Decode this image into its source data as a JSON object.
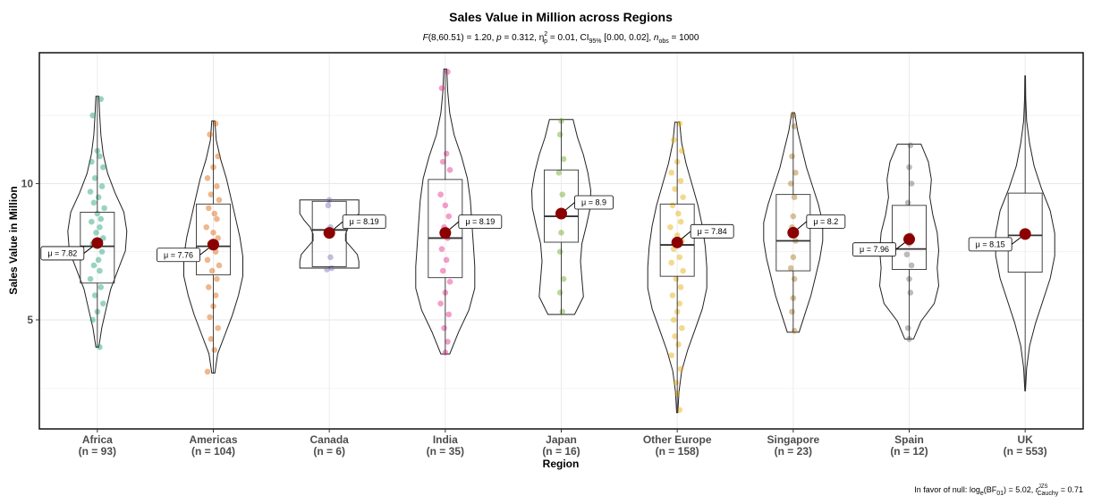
{
  "chart_data": {
    "type": "violin",
    "title": "Sales Value in Million across Regions",
    "subtitle_parts": {
      "F_label": "F",
      "F_args": "(8,60.51) = 1.20, ",
      "p_label": "p",
      "p_value": " = 0.312, ",
      "eta_label": "η",
      "eta_sup": "2",
      "eta_sub": "p",
      "eta_value": " = 0.01, CI",
      "ci_sub": "95%",
      "ci_value": " [0.00, 0.02], ",
      "n_label": "n",
      "n_sub": "obs",
      "n_value": " = 1000"
    },
    "xlabel": "Region",
    "ylabel": "Sales Value in Million",
    "ylim": [
      1.0,
      14.8
    ],
    "yticks": [
      5,
      10
    ],
    "grid": true,
    "caption_parts": {
      "prefix": "In favor of null: log",
      "log_sub": "e",
      "bf": "(BF",
      "bf_sub": "01",
      "mid": ") = 5.02, ",
      "r_label": "r",
      "r_sup": "JZS",
      "r_sub": "Cauchy",
      "suffix": " = 0.71"
    },
    "categories": [
      "Africa",
      "Americas",
      "Canada",
      "India",
      "Japan",
      "Other Europe",
      "Singapore",
      "Spain",
      "UK"
    ],
    "counts": [
      "(n = 93)",
      "(n = 104)",
      "(n = 6)",
      "(n = 35)",
      "(n = 16)",
      "(n = 158)",
      "(n = 23)",
      "(n = 12)",
      "(n = 553)"
    ],
    "colors": [
      "#1B9E77",
      "#D95F02",
      "#7570B3",
      "#E7298A",
      "#66A61E",
      "#E6AB02",
      "#A6761D",
      "#666666",
      "#1B9E77"
    ],
    "means": [
      7.82,
      7.76,
      8.19,
      8.19,
      8.9,
      7.84,
      8.2,
      7.96,
      8.15
    ],
    "mean_labels": [
      "μ = 7.82",
      "μ = 7.76",
      "μ = 8.19",
      "μ = 8.19",
      "μ = 8.9",
      "μ = 7.84",
      "μ = 8.2",
      "μ = 7.96",
      "μ = 8.15"
    ],
    "label_side": [
      "left",
      "left",
      "right",
      "right",
      "right",
      "right",
      "right",
      "left",
      "left"
    ],
    "boxes": [
      {
        "q1": 6.35,
        "median": 7.7,
        "q3": 8.95,
        "wlow": 4.0,
        "whigh": 13.2
      },
      {
        "q1": 6.65,
        "median": 7.7,
        "q3": 9.25,
        "wlow": 3.05,
        "whigh": 12.3
      },
      {
        "q1": 6.95,
        "median": 8.3,
        "q3": 9.35,
        "wlow": 6.9,
        "whigh": 9.4
      },
      {
        "q1": 6.55,
        "median": 8.0,
        "q3": 10.15,
        "wlow": 3.75,
        "whigh": 14.2
      },
      {
        "q1": 7.85,
        "median": 8.8,
        "q3": 10.5,
        "wlow": 5.2,
        "whigh": 12.35
      },
      {
        "q1": 6.6,
        "median": 7.75,
        "q3": 9.25,
        "wlow": 1.6,
        "whigh": 12.25
      },
      {
        "q1": 6.8,
        "median": 7.9,
        "q3": 9.6,
        "wlow": 4.55,
        "whigh": 12.6
      },
      {
        "q1": 6.85,
        "median": 7.6,
        "q3": 9.2,
        "wlow": 4.3,
        "whigh": 11.45
      },
      {
        "q1": 6.75,
        "median": 8.1,
        "q3": 9.65,
        "wlow": 2.4,
        "whigh": 13.95
      }
    ],
    "violins": [
      {
        "min": 4.0,
        "max": 13.2,
        "w": [
          0.05,
          0.15,
          0.3,
          0.45,
          0.7,
          0.95,
          1.0,
          0.9,
          0.6,
          0.35,
          0.2,
          0.12,
          0.08,
          0.05
        ]
      },
      {
        "min": 3.05,
        "max": 12.3,
        "w": [
          0.05,
          0.15,
          0.4,
          0.65,
          0.85,
          1.0,
          1.0,
          0.9,
          0.75,
          0.6,
          0.45,
          0.25,
          0.1,
          0.05
        ]
      },
      {
        "min": 6.9,
        "max": 9.4,
        "w": [
          1.0,
          1.0,
          0.95,
          0.75,
          0.55,
          0.55,
          0.65,
          0.85,
          1.0,
          1.0,
          1.0
        ]
      },
      {
        "min": 3.75,
        "max": 14.2,
        "w": [
          0.15,
          0.45,
          0.8,
          1.0,
          1.0,
          0.95,
          0.9,
          0.85,
          0.75,
          0.55,
          0.3,
          0.15,
          0.08,
          0.05
        ]
      },
      {
        "min": 5.2,
        "max": 12.35,
        "w": [
          0.45,
          0.75,
          0.7,
          0.65,
          0.7,
          0.85,
          0.98,
          1.0,
          0.9,
          0.75,
          0.55,
          0.4
        ]
      },
      {
        "min": 1.6,
        "max": 12.25,
        "w": [
          0.02,
          0.06,
          0.15,
          0.35,
          0.6,
          0.85,
          1.0,
          1.0,
          0.95,
          0.85,
          0.7,
          0.5,
          0.3,
          0.15,
          0.08
        ]
      },
      {
        "min": 4.55,
        "max": 12.6,
        "w": [
          0.2,
          0.4,
          0.6,
          0.75,
          0.9,
          1.0,
          1.0,
          0.85,
          0.65,
          0.45,
          0.3,
          0.15,
          0.05
        ]
      },
      {
        "min": 4.3,
        "max": 11.45,
        "w": [
          0.15,
          0.4,
          0.85,
          1.0,
          0.95,
          1.0,
          0.95,
          0.8,
          0.7,
          0.75,
          0.65,
          0.4
        ]
      },
      {
        "min": 2.4,
        "max": 13.95,
        "w": [
          0.01,
          0.05,
          0.15,
          0.35,
          0.6,
          0.85,
          1.0,
          1.0,
          0.85,
          0.55,
          0.3,
          0.15,
          0.05,
          0.02,
          0.01
        ]
      }
    ],
    "points": [
      {
        "x": [
          0.03,
          -0.04,
          0.0,
          0.02,
          -0.05,
          0.05,
          -0.02,
          0.04,
          -0.06,
          0.01,
          -0.03,
          0.06,
          0.0,
          0.03,
          -0.05,
          0.02,
          -0.01,
          0.05,
          -0.04,
          0.04,
          0.01,
          -0.03,
          0.02,
          -0.06,
          0.03,
          -0.02,
          0.05,
          0.0,
          -0.04,
          0.02
        ],
        "y": [
          13.1,
          12.5,
          11.2,
          11.0,
          10.8,
          10.6,
          10.2,
          9.9,
          9.7,
          9.5,
          9.3,
          9.1,
          8.9,
          8.7,
          8.6,
          8.4,
          8.2,
          8.0,
          7.8,
          7.5,
          7.2,
          7.0,
          6.8,
          6.5,
          6.2,
          5.9,
          5.6,
          5.3,
          5.0,
          4.0
        ]
      },
      {
        "x": [
          0.02,
          -0.03,
          0.04,
          0.0,
          -0.05,
          0.03,
          -0.02,
          0.05,
          -0.04,
          0.01,
          0.03,
          -0.06,
          0.0,
          0.04,
          -0.03,
          0.02,
          -0.05,
          0.05,
          -0.01,
          0.03,
          -0.04,
          0.02,
          0.0,
          -0.03,
          0.04,
          -0.02,
          0.01,
          -0.05
        ],
        "y": [
          12.2,
          11.8,
          11.0,
          10.6,
          10.2,
          9.9,
          9.6,
          9.4,
          9.1,
          8.9,
          8.7,
          8.4,
          8.2,
          8.0,
          7.8,
          7.5,
          7.2,
          7.0,
          6.8,
          6.5,
          6.2,
          5.9,
          5.5,
          5.1,
          4.7,
          4.3,
          3.9,
          3.1
        ]
      },
      {
        "x": [
          0.0,
          -0.01,
          0.01,
          0.02,
          -0.02,
          0.01
        ],
        "y": [
          9.4,
          9.2,
          7.3,
          6.9,
          6.85,
          8.4
        ]
      },
      {
        "x": [
          0.02,
          -0.03,
          0.01,
          -0.02,
          0.04,
          -0.04,
          0.0,
          0.03,
          -0.01,
          0.02,
          -0.03,
          0.01,
          -0.02,
          0.04,
          0.0,
          -0.04,
          0.03,
          -0.01,
          0.02,
          0.0
        ],
        "y": [
          14.1,
          13.5,
          11.1,
          10.8,
          10.5,
          9.6,
          9.2,
          8.8,
          8.4,
          8.0,
          7.6,
          7.2,
          6.8,
          6.4,
          6.0,
          5.6,
          5.2,
          4.7,
          4.2,
          3.8
        ]
      },
      {
        "x": [
          0.0,
          -0.01,
          0.02,
          -0.02,
          0.01,
          0.0,
          -0.01,
          0.02,
          -0.01,
          0.01
        ],
        "y": [
          12.3,
          11.8,
          10.9,
          10.4,
          9.6,
          8.2,
          7.5,
          6.5,
          6.0,
          5.3
        ]
      },
      {
        "x": [
          0.02,
          -0.03,
          0.04,
          0.0,
          -0.05,
          0.03,
          -0.02,
          0.05,
          -0.04,
          0.01,
          0.03,
          -0.06,
          0.0,
          0.04,
          -0.03,
          0.02,
          -0.05,
          0.05,
          -0.01,
          0.03,
          -0.04,
          0.02,
          0.0,
          -0.03,
          0.04,
          -0.02,
          0.01,
          -0.05,
          0.03,
          -0.01,
          0.0,
          0.02
        ],
        "y": [
          12.2,
          11.6,
          11.2,
          10.8,
          10.4,
          10.1,
          9.8,
          9.5,
          9.2,
          8.9,
          8.6,
          8.4,
          8.1,
          7.9,
          7.6,
          7.3,
          7.1,
          6.8,
          6.5,
          6.2,
          5.9,
          5.6,
          5.3,
          5.0,
          4.7,
          4.4,
          4.1,
          3.7,
          3.2,
          2.7,
          2.3,
          1.7
        ]
      },
      {
        "x": [
          0.0,
          0.01,
          -0.01,
          0.02,
          -0.02,
          0.01,
          0.0,
          -0.01,
          0.02,
          0.0,
          -0.02,
          0.01,
          0.0,
          -0.01,
          0.01
        ],
        "y": [
          12.5,
          12.1,
          11.0,
          10.4,
          10.0,
          9.5,
          8.8,
          8.4,
          7.9,
          7.3,
          6.9,
          6.5,
          5.8,
          5.3,
          4.6
        ]
      },
      {
        "x": [
          0.01,
          0.0,
          0.02,
          -0.01,
          0.01,
          0.0,
          -0.02,
          0.02,
          0.0,
          0.01,
          -0.01,
          0.0
        ],
        "y": [
          11.4,
          10.6,
          10.0,
          9.3,
          8.1,
          7.8,
          7.4,
          7.0,
          6.5,
          6.0,
          4.7,
          4.3
        ]
      },
      {
        "x": [],
        "y": []
      }
    ]
  }
}
